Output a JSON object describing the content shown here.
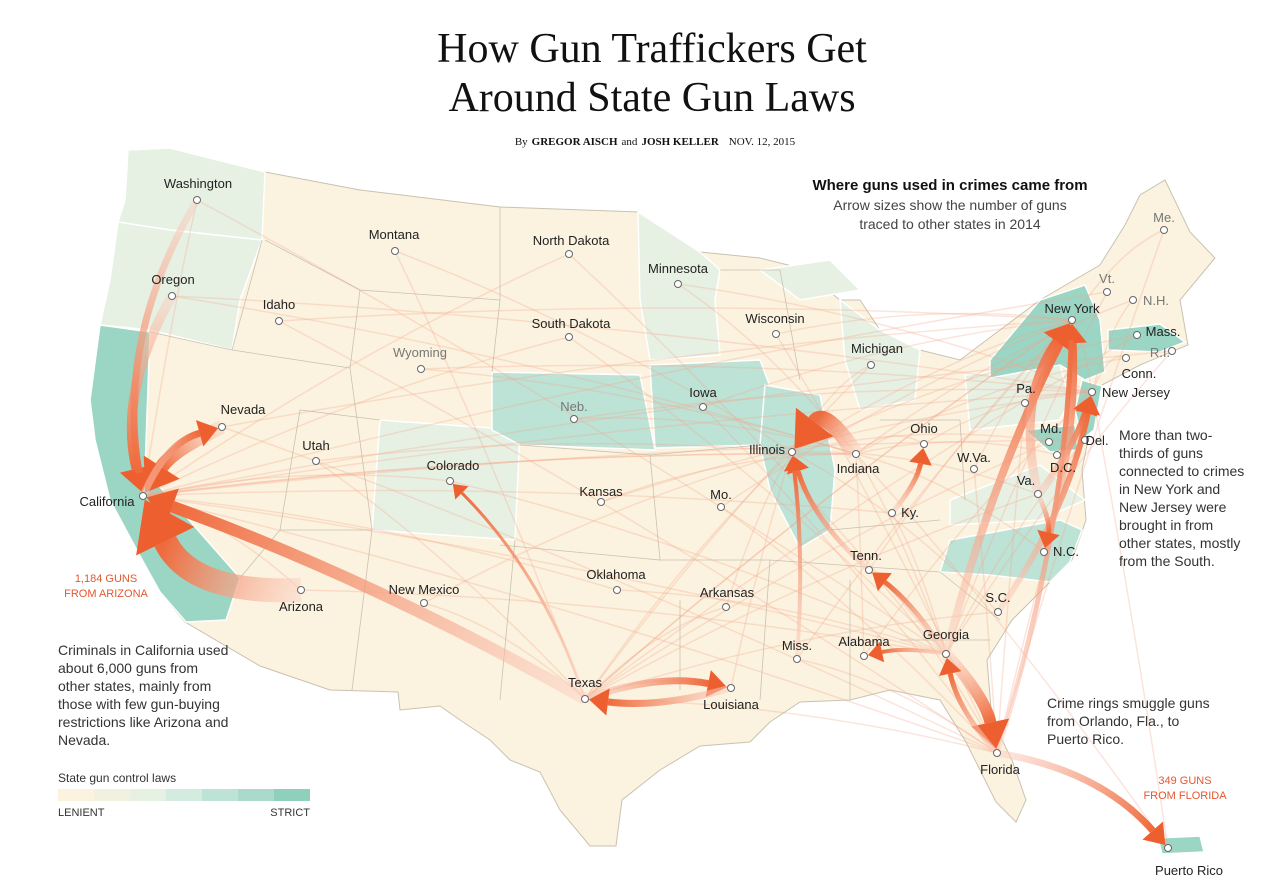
{
  "header": {
    "title_lines": [
      "How Gun Traffickers Get",
      "Around State Gun Laws"
    ],
    "byline": {
      "by": "By",
      "author1": "GREGOR AISCH",
      "and": "and",
      "author2": "JOSH KELLER",
      "date": "NOV. 12, 2015"
    }
  },
  "key": {
    "title": "Where guns used in crimes came from",
    "subtitle_lines": [
      "Arrow sizes show the number of guns",
      "traced to other states in 2014"
    ]
  },
  "states": [
    "Washington",
    "Oregon",
    "Idaho",
    "Montana",
    "North Dakota",
    "Minnesota",
    "Wisconsin",
    "Michigan",
    "South Dakota",
    "Wyoming",
    "Nevada",
    "Utah",
    "Colorado",
    "Neb.",
    "Iowa",
    "Illinois",
    "Indiana",
    "Ohio",
    "Pa.",
    "New York",
    "Vt.",
    "N.H.",
    "Me.",
    "Mass.",
    "R.I.",
    "Conn.",
    "New Jersey",
    "Md.",
    "Del.",
    "D.C.",
    "W.Va.",
    "Va.",
    "Ky.",
    "N.C.",
    "Tenn.",
    "S.C.",
    "Georgia",
    "Alabama",
    "Miss.",
    "Arkansas",
    "Oklahoma",
    "Kansas",
    "Mo.",
    "New Mexico",
    "Arizona",
    "California",
    "Texas",
    "Louisiana",
    "Florida",
    "Puerto Rico"
  ],
  "annotations": {
    "arizona_flow": [
      "1,184 GUNS",
      "FROM ARIZONA"
    ],
    "california_note": [
      "Criminals in California used",
      "about 6,000 guns from",
      "other states, mainly from",
      "those with few gun-buying",
      "restrictions like Arizona and",
      "Nevada."
    ],
    "northeast_note": [
      "More than two-",
      "thirds of guns",
      "connected to crimes",
      "in New York and",
      "New Jersey were",
      "brought in from",
      "other states, mostly",
      "from the South."
    ],
    "puerto_rico_note": [
      "Crime rings smuggle guns",
      "from Orlando, Fla., to",
      "Puerto Rico."
    ],
    "florida_flow": [
      "349 GUNS",
      "FROM FLORIDA"
    ]
  },
  "legend": {
    "title": "State gun control laws",
    "low_label": "LENIENT",
    "high_label": "STRICT"
  }
}
